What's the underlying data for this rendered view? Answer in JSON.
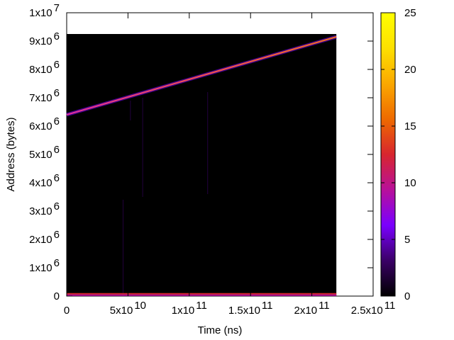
{
  "chart_data": {
    "type": "heatmap",
    "xlabel": "Time (ns)",
    "ylabel": "Address (bytes)",
    "xlim": [
      0,
      250000000000
    ],
    "ylim": [
      0,
      10000000
    ],
    "x_ticks": [
      {
        "value": 0,
        "mant": "0",
        "exp": ""
      },
      {
        "value": 50000000000,
        "mant": "5x10",
        "exp": "10"
      },
      {
        "value": 100000000000,
        "mant": "1x10",
        "exp": "11"
      },
      {
        "value": 150000000000,
        "mant": "1.5x10",
        "exp": "11"
      },
      {
        "value": 200000000000,
        "mant": "2x10",
        "exp": "11"
      },
      {
        "value": 250000000000,
        "mant": "2.5x10",
        "exp": "11"
      }
    ],
    "y_ticks": [
      {
        "value": 0,
        "mant": "0",
        "exp": ""
      },
      {
        "value": 1000000,
        "mant": "1x10",
        "exp": "6"
      },
      {
        "value": 2000000,
        "mant": "2x10",
        "exp": "6"
      },
      {
        "value": 3000000,
        "mant": "3x10",
        "exp": "6"
      },
      {
        "value": 4000000,
        "mant": "4x10",
        "exp": "6"
      },
      {
        "value": 5000000,
        "mant": "5x10",
        "exp": "6"
      },
      {
        "value": 6000000,
        "mant": "6x10",
        "exp": "6"
      },
      {
        "value": 7000000,
        "mant": "7x10",
        "exp": "6"
      },
      {
        "value": 8000000,
        "mant": "8x10",
        "exp": "6"
      },
      {
        "value": 9000000,
        "mant": "9x10",
        "exp": "6"
      },
      {
        "value": 10000000,
        "mant": "1x10",
        "exp": "7"
      }
    ],
    "heatmap_extent": {
      "x": [
        0,
        220000000000
      ],
      "y": [
        0,
        9250000
      ]
    },
    "diagonal_band": {
      "x": [
        0,
        220000000000
      ],
      "y": [
        6400000,
        9150000
      ],
      "value": 15
    },
    "bottom_bands": [
      {
        "y": 80000,
        "value": 12
      },
      {
        "y": 30000,
        "value": 8
      }
    ],
    "vertical_streaks": [
      {
        "x": 46000000000,
        "y": [
          0,
          3400000
        ],
        "value": 3
      },
      {
        "x": 52000000000,
        "y": [
          6200000,
          6900000
        ],
        "value": 4
      },
      {
        "x": 62000000000,
        "y": [
          3500000,
          7000000
        ],
        "value": 2
      },
      {
        "x": 115000000000,
        "y": [
          3600000,
          7200000
        ],
        "value": 3
      }
    ],
    "colorbar": {
      "range": [
        0,
        25
      ],
      "ticks": [
        0,
        5,
        10,
        15,
        20,
        25
      ],
      "palette": [
        "#000000",
        "#3a0066",
        "#7a00ff",
        "#b8109a",
        "#d8262e",
        "#ee6a00",
        "#fba800",
        "#fde000",
        "#ffff00"
      ]
    },
    "grid": false,
    "colors": {
      "background": "#000000"
    }
  }
}
